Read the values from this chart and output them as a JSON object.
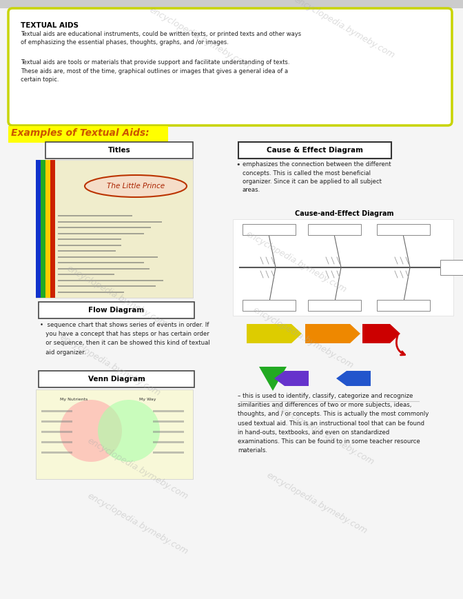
{
  "page_bg": "#f5f5f5",
  "top_box": {
    "border_color": "#c8d400",
    "fill_color": "#ffffff",
    "title": "TEXTUAL AIDS",
    "para1": "Textual aids are educational instruments, could be written texts, or printed texts and other ways\nof emphasizing the essential phases, thoughts, graphs, and /or images.",
    "para2": "Textual aids are tools or materials that provide support and facilitate understanding of texts.\nThese aids are, most of the time, graphical outlines or images that gives a general idea of a\ncertain topic."
  },
  "section_title": "Examples of Textual Aids:",
  "section_title_color": "#cc5500",
  "left_col": {
    "titles_box_label": "Titles",
    "book_title": "The Little Prince",
    "flow_label": "Flow Diagram",
    "flow_text": "•  sequence chart that shows series of events in order. If\n   you have a concept that has steps or has certain order\n   or sequence, then it can be showed this kind of textual\n   aid organizer.",
    "venn_label": "Venn Diagram"
  },
  "right_col": {
    "cause_label": "Cause & Effect Diagram",
    "cause_text": "emphasizes the connection between the different\nconcepts. This is called the most beneficial\norganizer. Since it can be applied to all subject\nareas.",
    "cause_diagram_title": "Cause-and-Effect Diagram",
    "venn_text": "– this is used to identify, classify, categorize and recognize\nsimilarities and differences of two or more subjects, ideas,\nthoughts, and / or concepts. This is actually the most commonly\nused textual aid. This is an instructional tool that can be found\nin hand-outs, textbooks, and even on standardized\nexaminations. This can be found to in some teacher resource\nmaterials."
  },
  "watermark_color": "#aaaaaa",
  "watermark_alpha": 0.4
}
